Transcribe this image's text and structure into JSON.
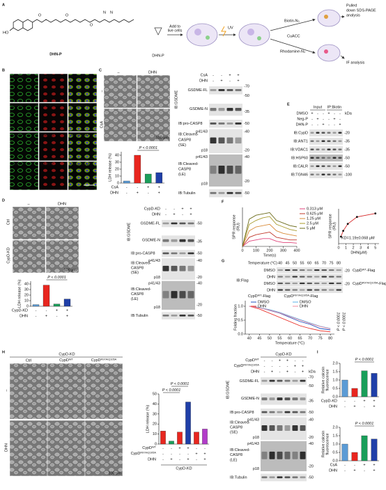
{
  "panel_a": {
    "letter": "A",
    "ho": "HO",
    "atoms": [
      "O",
      "O",
      "O",
      "N",
      "N"
    ],
    "compound": "DHN-P",
    "probe": "DHN-P",
    "add_cells": [
      "Add to",
      "live cells"
    ],
    "uv": "UV",
    "biotin": "Biotin-N₃",
    "cuacc": "CuACC",
    "rhodamine": "Rhodamine-N₃",
    "pulldown": [
      "Pulled",
      "down SDS-PAGE",
      "analysis"
    ],
    "if": "IF analysis"
  },
  "panel_b": {
    "letter": "B",
    "rows": [
      {
        "probe": "DHN-P",
        "marker": "Tom20",
        "merge": "Merge/DAPI"
      },
      {
        "probe": "DHN-P",
        "marker": "CALR",
        "merge": "Merge/DAPI"
      },
      {
        "probe": "DHN-P",
        "marker": "GM130",
        "merge": "Merge/DAPI"
      },
      {
        "probe": "DHN-P",
        "marker": "LAMP2",
        "merge": "Merge/DAPI"
      }
    ],
    "scale": "20 μm"
  },
  "panel_c": {
    "letter": "C",
    "columns": [
      "–",
      "DHN"
    ],
    "rows": [
      "–",
      "CsA"
    ],
    "scale": "100 μm",
    "chart": {
      "type": "bar",
      "ylabel": "LDH release (%)",
      "p_labels": [
        "P < 0.0001"
      ],
      "values": [
        3,
        40,
        13,
        15
      ],
      "colors": [
        "#5b9bd5",
        "#e8261f",
        "#1a9e5a",
        "#1f3fa8"
      ],
      "ylim": [
        0,
        45
      ],
      "yticks": [
        0,
        10,
        20,
        30,
        40
      ],
      "conditions": [
        {
          "name": "CsA",
          "signs": [
            "-",
            "-",
            "+",
            "+"
          ]
        },
        {
          "name": "DHN",
          "signs": [
            "-",
            "+",
            "-",
            "+"
          ]
        }
      ]
    },
    "blot": {
      "conditions": [
        {
          "name": "CsA",
          "signs": [
            "-",
            "-",
            "+",
            "+"
          ]
        },
        {
          "name": "DHN",
          "signs": [
            "-",
            "+",
            "-",
            "+"
          ]
        }
      ],
      "ib_group": "IB:GSDME",
      "labels": [
        "GSDME-FL",
        "GSDME-N",
        "IB:pro-CASP8",
        "IB:Cleaved-",
        "CASP8",
        "(SE)",
        "p41/43",
        "p18",
        "IB:Cleaved-",
        "CASP8",
        "(LE)",
        "p41/43",
        "p18",
        "IB:Tubulin"
      ],
      "markers": [
        "-70",
        "-50",
        "-35",
        "-50",
        "-40",
        "-20",
        "-40",
        "-20",
        "-50"
      ]
    }
  },
  "panel_d": {
    "letter": "D",
    "columns": [
      "–",
      "DHN"
    ],
    "rows": [
      "Ctrl",
      "CypD-KD"
    ],
    "scale": "100 μm",
    "chart": {
      "type": "bar",
      "ylabel": "LDH release (%)",
      "p_labels": [
        "P < 0.0001"
      ],
      "values": [
        3,
        38,
        4,
        13
      ],
      "colors": [
        "#5b9bd5",
        "#e8261f",
        "#1a9e5a",
        "#1f3fa8"
      ],
      "ylim": [
        0,
        45
      ],
      "yticks": [
        0,
        10,
        20,
        30,
        40
      ],
      "conditions": [
        {
          "name": "CypD-KD",
          "signs": [
            "-",
            "-",
            "+",
            "+"
          ]
        },
        {
          "name": "DHN",
          "signs": [
            "-",
            "+",
            "-",
            "+"
          ]
        }
      ]
    },
    "blot": {
      "conditions": [
        {
          "name": "CypD-KD",
          "signs": [
            "-",
            "-",
            "+",
            "+"
          ]
        },
        {
          "name": "DHN",
          "signs": [
            "-",
            "+",
            "-",
            "+"
          ]
        }
      ],
      "ib_group": "IB:GSDME",
      "labels": [
        "GSDME-FL",
        "GSDME-N",
        "IB:pro-CASP8",
        "IB:Cleaved-",
        "CASP8",
        "(SE)",
        "p41/43",
        "p18",
        "IB:Cleaved-",
        "CASP8",
        "(LE)",
        "p41/43",
        "p18",
        "IB:Tubulin"
      ],
      "markers": [
        "-50",
        "-35",
        "-50",
        "-40",
        "-20",
        "-40",
        "-20",
        "-50"
      ]
    }
  },
  "panel_e": {
    "letter": "E",
    "groups": [
      "Input",
      "IP:Biotin"
    ],
    "kda": "kDa",
    "conditions": [
      {
        "name": "DMSO",
        "signs": [
          "+",
          "-",
          "-",
          "+",
          "-",
          "-"
        ]
      },
      {
        "name": "Neg-P",
        "signs": [
          "-",
          "+",
          "-",
          "-",
          "+",
          "-"
        ]
      },
      {
        "name": "DHN-P",
        "signs": [
          "-",
          "-",
          "+",
          "-",
          "-",
          "+"
        ]
      }
    ],
    "labels": [
      "IB:CypD",
      "IB:ANT1",
      "IB:VDAC1",
      "IB:HSP60",
      "IB:CALR",
      "IB:TGN46"
    ],
    "markers": [
      "-20",
      "-35",
      "-35",
      "-50",
      "-50",
      "-100"
    ]
  },
  "panel_f": {
    "letter": "F",
    "kinetics": {
      "type": "line",
      "xlabel": "Time(s)",
      "ylabel": [
        "SPR response",
        "(RU)"
      ],
      "x": [
        0,
        50,
        100,
        150,
        200,
        250,
        300,
        350,
        400
      ],
      "xlim": [
        0,
        400
      ],
      "xticks": [
        0,
        100,
        200,
        300,
        400
      ],
      "ylim": [
        0,
        30
      ],
      "series": [
        {
          "name": "0.313 μM",
          "color": "#e0457b",
          "values": [
            0,
            4,
            5,
            6,
            6,
            4,
            3,
            3,
            2.5
          ]
        },
        {
          "name": "0.625 μM",
          "color": "#c0392b",
          "values": [
            0,
            7,
            9,
            10,
            11,
            7,
            6,
            5,
            5
          ]
        },
        {
          "name": "1.25 μM",
          "color": "#d98c3a",
          "values": [
            0,
            12,
            15,
            16,
            17,
            12,
            10,
            9,
            8
          ]
        },
        {
          "name": "2.5 μM",
          "color": "#a89a2a",
          "values": [
            0,
            17,
            20,
            22,
            23,
            17,
            15,
            13,
            12
          ]
        },
        {
          "name": "5 μM",
          "color": "#6b6b1a",
          "values": [
            0,
            21,
            24,
            25,
            26,
            20,
            18,
            16,
            15
          ]
        }
      ]
    },
    "binding": {
      "type": "scatter",
      "xlabel": "DHN(μM)",
      "ylabel": [
        "SPR response",
        "(RU)"
      ],
      "annotation": "KD=1.19±0.068 μM",
      "x": [
        0.313,
        0.625,
        1.25,
        2.5,
        5
      ],
      "xlim": [
        0,
        5.5
      ],
      "xticks": [
        0,
        1,
        2,
        3,
        4,
        5
      ],
      "ylim": [
        0,
        30
      ],
      "series": [
        {
          "color": "#d62728",
          "values": [
            6,
            11,
            17,
            23,
            26
          ]
        }
      ]
    }
  },
  "panel_g": {
    "letter": "G",
    "temp_label": "Temperature (°C)",
    "temps": [
      40,
      45,
      50,
      55,
      60,
      65,
      70,
      75,
      80
    ],
    "ib": "IB:Flag",
    "rows": [
      "DMSO",
      "DHN",
      "DMSO",
      "DHN"
    ],
    "markers": [
      "-20",
      "-20"
    ],
    "constructs": [
      {
        "base": "CypD",
        "sup": "WT",
        "tail": "-Flag"
      },
      {
        "base": "CypD",
        "sup": "R97A/Q105A",
        "tail": "-Flag"
      }
    ],
    "chart": {
      "type": "line",
      "xlabel": "Temperature (°C)",
      "ylabel": "Folding fraction",
      "p_labels": [
        "P < 0.0001",
        "P < 0.0001"
      ],
      "legend_groups": [
        {
          "base": "CypD",
          "sup": "WT",
          "tail": "-Flag"
        },
        {
          "base": "CypD",
          "sup": "R97A/Q105A",
          "tail": "-Flag"
        }
      ],
      "x": [
        40,
        45,
        50,
        55,
        60,
        65,
        70,
        75,
        80
      ],
      "xlim": [
        38,
        82
      ],
      "xticks": [
        40,
        45,
        50,
        55,
        60,
        65,
        70,
        75,
        80
      ],
      "ylim": [
        0,
        1.2
      ],
      "yticks": [
        {
          "value": 0,
          "label": "0.0"
        },
        {
          "value": 0.5,
          "label": "0.5"
        },
        {
          "value": 1,
          "label": "1.0"
        }
      ],
      "series": [
        {
          "name": "DMSO",
          "color": "#1f4fbf",
          "values": [
            1,
            0.95,
            0.85,
            0.75,
            0.6,
            0.45,
            0.35,
            0.2,
            0.15
          ]
        },
        {
          "name": "DHN",
          "color": "#e8261f",
          "values": [
            1,
            0.9,
            0.75,
            0.6,
            0.45,
            0.3,
            0.2,
            0.12,
            0.08
          ]
        },
        {
          "name": "DMSO",
          "color": "#5bb0e8",
          "values": [
            1,
            0.95,
            0.88,
            0.78,
            0.65,
            0.52,
            0.4,
            0.28,
            0.2
          ]
        },
        {
          "name": "DHN",
          "color": "#f08ca0",
          "values": [
            1,
            0.94,
            0.86,
            0.76,
            0.63,
            0.5,
            0.38,
            0.27,
            0.19
          ]
        }
      ]
    }
  },
  "panel_h": {
    "letter": "H",
    "group": "CypD-KD",
    "columns": [
      "Ctrl",
      {
        "base": "CypD",
        "sup": "WT"
      },
      {
        "base": "CypD",
        "sup": "R97A/Q105A"
      }
    ],
    "rows": [
      "–",
      "DHN"
    ],
    "scale": "100 μm",
    "chart": {
      "type": "bar",
      "ylabel": "LDH release (%)",
      "group": "CypD-KD",
      "p_labels": [
        "P < 0.0001",
        "P < 0.0001"
      ],
      "values": [
        13,
        3,
        12,
        42,
        12,
        15
      ],
      "colors": [
        "#e8261f",
        "#1a9e5a",
        "#e8261f",
        "#1f3fa8",
        "#e8261f",
        "#b23cc9"
      ],
      "ylim": [
        0,
        50
      ],
      "yticks": [
        0,
        10,
        20,
        30,
        40,
        50
      ],
      "conditions": [
        {
          "name": {
            "base": "CypD",
            "sup": "WT"
          },
          "signs": [
            "-",
            "-",
            "+",
            "+",
            "-",
            "-"
          ]
        },
        {
          "name": {
            "base": "CypD",
            "sup": "R97A/Q105A"
          },
          "signs": [
            "-",
            "-",
            "-",
            "-",
            "+",
            "+"
          ]
        },
        {
          "name": "DHN",
          "signs": [
            "-",
            "+",
            "-",
            "+",
            "-",
            "+"
          ]
        }
      ]
    },
    "blot": {
      "group": "CypD-KD",
      "kda": "kDa",
      "conditions": [
        {
          "name": {
            "base": "CypD",
            "sup": "WT"
          },
          "signs": [
            "-",
            "-",
            "+",
            "+",
            "-",
            "-"
          ]
        },
        {
          "name": {
            "base": "CypD",
            "sup": "R97A/Q105A"
          },
          "signs": [
            "-",
            "-",
            "-",
            "-",
            "+",
            "+"
          ]
        },
        {
          "name": "DHN",
          "signs": [
            "-",
            "+",
            "-",
            "+",
            "-",
            "+"
          ]
        }
      ],
      "ib_group": "IB:GSDME",
      "labels": [
        "GSDME-FL",
        "GSDME-N",
        "IB:pro-CASP8",
        "IB:Cleaved-",
        "CASP8",
        "(SE)",
        "p41/43",
        "p18",
        "IB:Cleaved-",
        "CASP8",
        "(LE)",
        "p41/43",
        "p18",
        "IB:Tubulin"
      ],
      "markers": [
        "-70",
        "-50",
        "-35",
        "-50",
        "-40",
        "-20",
        "-40",
        "-20",
        "-50"
      ]
    }
  },
  "panel_i": {
    "letter": "I",
    "top": {
      "type": "bar",
      "ylabel": [
        "Relative calcein",
        "fluorescence"
      ],
      "p_labels": [
        "P < 0.0001"
      ],
      "values": [
        1.0,
        0.5,
        1.55,
        1.4
      ],
      "colors": [
        "#5b9bd5",
        "#e8261f",
        "#1a9e5a",
        "#1f3fa8"
      ],
      "ylim": [
        0,
        2
      ],
      "yticks": [
        {
          "value": 0,
          "label": "0.0"
        },
        {
          "value": 0.5,
          "label": "0.5"
        },
        {
          "value": 1,
          "label": "1.0"
        },
        {
          "value": 1.5,
          "label": "1.5"
        },
        {
          "value": 2,
          "label": "2.0"
        }
      ],
      "conditions": [
        {
          "name": "CypD-KD",
          "signs": [
            "-",
            "-",
            "+",
            "+"
          ]
        },
        {
          "name": "DHN",
          "signs": [
            "-",
            "+",
            "-",
            "+"
          ]
        }
      ]
    },
    "bottom": {
      "type": "bar",
      "ylabel": [
        "Relative calcein",
        "fluorescence"
      ],
      "p_labels": [
        "P < 0.0001"
      ],
      "values": [
        1.0,
        0.5,
        1.5,
        1.3
      ],
      "colors": [
        "#5b9bd5",
        "#e8261f",
        "#1a9e5a",
        "#1f3fa8"
      ],
      "ylim": [
        0,
        2
      ],
      "yticks": [
        {
          "value": 0,
          "label": "0.0"
        },
        {
          "value": 0.5,
          "label": "0.5"
        },
        {
          "value": 1,
          "label": "1.0"
        },
        {
          "value": 1.5,
          "label": "1.5"
        },
        {
          "value": 2,
          "label": "2.0"
        }
      ],
      "conditions": [
        {
          "name": "CsA",
          "signs": [
            "-",
            "-",
            "+",
            "+"
          ]
        },
        {
          "name": "DHN",
          "signs": [
            "-",
            "+",
            "-",
            "+"
          ]
        }
      ]
    }
  }
}
